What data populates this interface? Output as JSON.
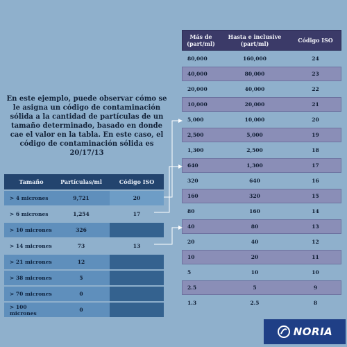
{
  "explanation": "En este ejemplo, puede observar cómo se le asigna un código de contaminación sólida a la cantidad de partículas de un tamaño determinado, basado en donde cae el valor en la tabla. En este caso, el código de contaminación sólida es 20/17/13",
  "iso_table": {
    "headers": {
      "more_than": "Más de (part/ml)",
      "up_to": "Hasta e inclusive (part/ml)",
      "code": "Código ISO"
    },
    "rows": [
      {
        "more_than": "80,000",
        "up_to": "160,000",
        "code": "24"
      },
      {
        "more_than": "40,000",
        "up_to": "80,000",
        "code": "23"
      },
      {
        "more_than": "20,000",
        "up_to": "40,000",
        "code": "22"
      },
      {
        "more_than": "10,000",
        "up_to": "20,000",
        "code": "21"
      },
      {
        "more_than": "5,000",
        "up_to": "10,000",
        "code": "20"
      },
      {
        "more_than": "2,500",
        "up_to": "5,000",
        "code": "19"
      },
      {
        "more_than": "1,300",
        "up_to": "2,500",
        "code": "18"
      },
      {
        "more_than": "640",
        "up_to": "1,300",
        "code": "17"
      },
      {
        "more_than": "320",
        "up_to": "640",
        "code": "16"
      },
      {
        "more_than": "160",
        "up_to": "320",
        "code": "15"
      },
      {
        "more_than": "80",
        "up_to": "160",
        "code": "14"
      },
      {
        "more_than": "40",
        "up_to": "80",
        "code": "13"
      },
      {
        "more_than": "20",
        "up_to": "40",
        "code": "12"
      },
      {
        "more_than": "10",
        "up_to": "20",
        "code": "11"
      },
      {
        "more_than": "5",
        "up_to": "10",
        "code": "10"
      },
      {
        "more_than": "2.5",
        "up_to": "5",
        "code": "9"
      },
      {
        "more_than": "1.3",
        "up_to": "2.5",
        "code": "8"
      }
    ]
  },
  "particle_table": {
    "headers": {
      "size": "Tamaño",
      "particles": "Partículas/ml",
      "code": "Código ISO"
    },
    "rows": [
      {
        "size": "> 4 micrones",
        "particles": "9,721",
        "code": "20"
      },
      {
        "size": "> 6 micrones",
        "particles": "1,254",
        "code": "17"
      },
      {
        "size": "> 10 micrones",
        "particles": "326",
        "code": ""
      },
      {
        "size": "> 14 micrones",
        "particles": "73",
        "code": "13"
      },
      {
        "size": "> 21 micrones",
        "particles": "12",
        "code": ""
      },
      {
        "size": "> 38 micrones",
        "particles": "5",
        "code": ""
      },
      {
        "size": "> 70 micrones",
        "particles": "0",
        "code": ""
      },
      {
        "size": "> 100 micrones",
        "particles": "0",
        "code": ""
      }
    ]
  },
  "logo": {
    "text": "NORIA"
  },
  "colors": {
    "iso_header": "#3b3a68",
    "iso_band": "#8a8eb7",
    "particle_header": "#23446e",
    "particle_band": "#5f8fbc",
    "logo_bg": "#1f3f86"
  }
}
